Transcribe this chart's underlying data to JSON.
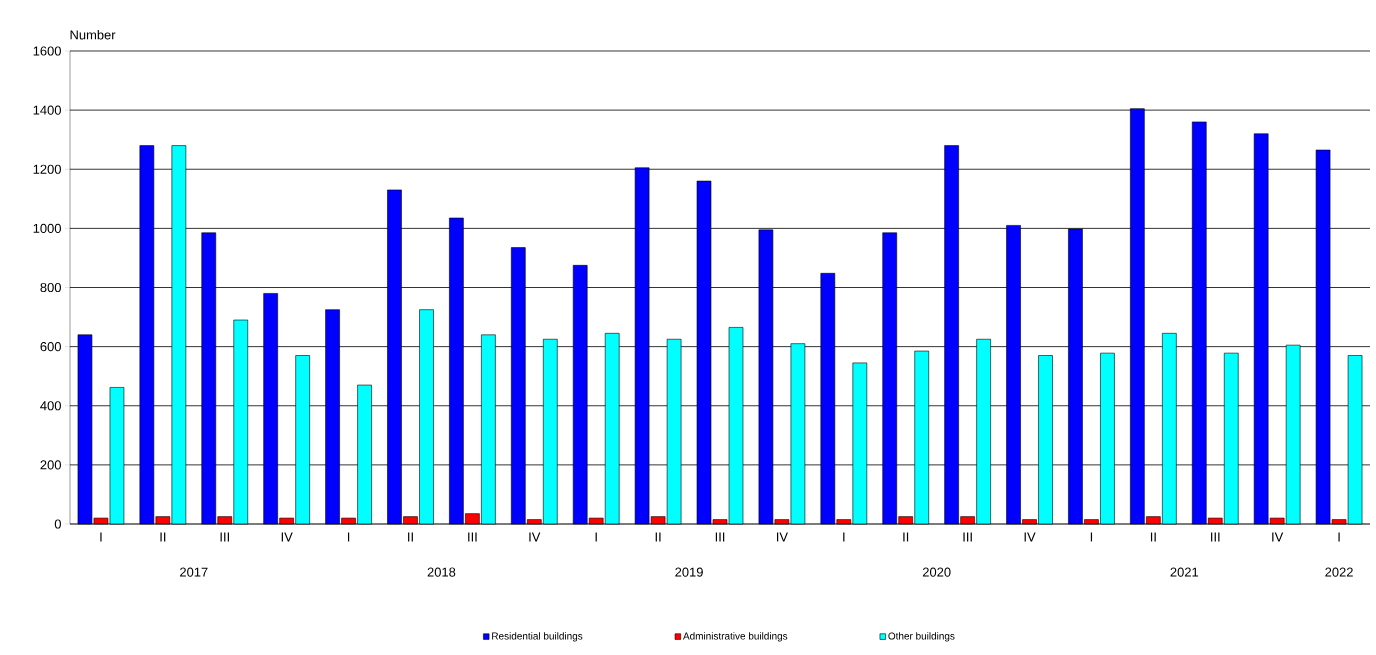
{
  "chart_data": {
    "type": "bar",
    "ylabel": "Number",
    "categories": [
      "I",
      "II",
      "III",
      "IV",
      "I",
      "II",
      "III",
      "IV",
      "I",
      "II",
      "III",
      "IV",
      "I",
      "II",
      "III",
      "IV",
      "I",
      "II",
      "III",
      "IV",
      "I"
    ],
    "annotations": [
      "2017",
      "2018",
      "2019",
      "2020",
      "2021",
      "2022"
    ],
    "series": [
      {
        "name": "Residential buildings",
        "color": "#0000ff",
        "values": [
          640,
          1280,
          985,
          780,
          725,
          1130,
          1035,
          935,
          875,
          1205,
          1160,
          995,
          848,
          985,
          1280,
          1010,
          998,
          1405,
          1360,
          1320,
          1265
        ]
      },
      {
        "name": "Administrative buildings",
        "color": "#ff0000",
        "values": [
          20,
          25,
          25,
          20,
          20,
          25,
          35,
          15,
          20,
          25,
          15,
          15,
          15,
          25,
          25,
          15,
          15,
          25,
          20,
          20,
          15
        ]
      },
      {
        "name": "Other buildings",
        "color": "#00ffff",
        "values": [
          462,
          1280,
          690,
          570,
          470,
          725,
          640,
          625,
          645,
          625,
          665,
          610,
          545,
          585,
          625,
          570,
          578,
          645,
          578,
          605,
          570
        ]
      }
    ],
    "ylim": [
      0,
      1600
    ],
    "yticks": [
      0,
      200,
      400,
      600,
      800,
      1000,
      1200,
      1400,
      1600
    ],
    "grid": "y",
    "legend": "bottom"
  }
}
